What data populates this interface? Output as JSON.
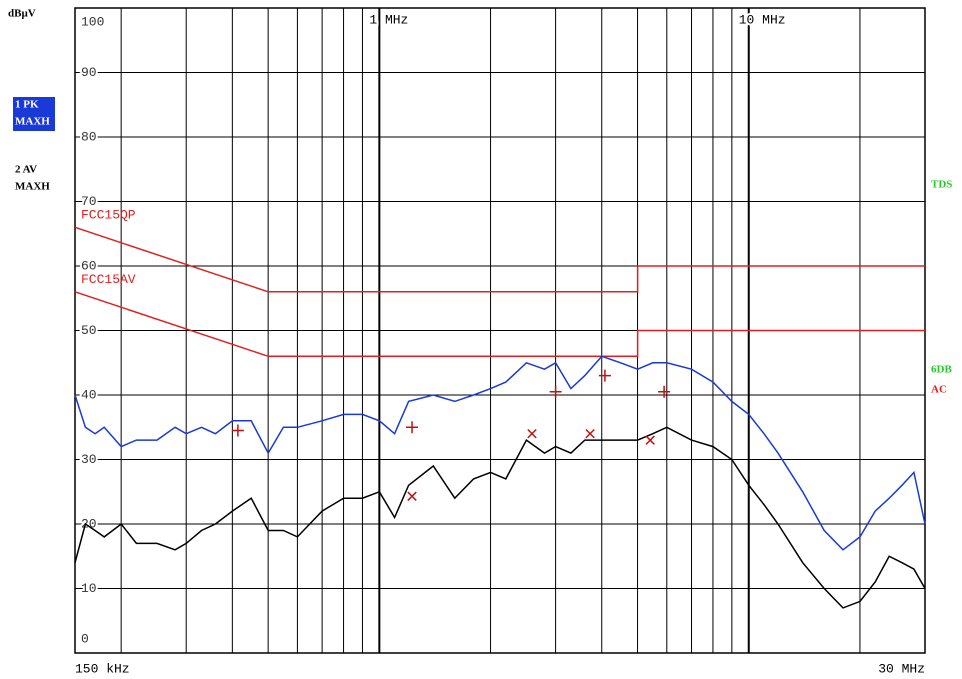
{
  "chart_data": {
    "type": "line",
    "y_unit": "dBµV",
    "xscale": "log",
    "grid": true,
    "xlim": [
      0.15,
      30
    ],
    "ylim": [
      0,
      100
    ],
    "xticks": [
      {
        "value": 0.15,
        "label": "150 kHz"
      },
      {
        "value": 1,
        "label": "1 MHz"
      },
      {
        "value": 10,
        "label": "10 MHz"
      },
      {
        "value": 30,
        "label": "30 MHz"
      }
    ],
    "xgrid": [
      0.2,
      0.3,
      0.4,
      0.5,
      0.6,
      0.7,
      0.8,
      0.9,
      2,
      3,
      4,
      5,
      6,
      7,
      8,
      9,
      20
    ],
    "yticks": [
      0,
      10,
      20,
      30,
      40,
      50,
      60,
      70,
      80,
      90,
      100
    ],
    "x": [
      0.15,
      0.16,
      0.17,
      0.18,
      0.2,
      0.22,
      0.25,
      0.28,
      0.3,
      0.33,
      0.36,
      0.4,
      0.45,
      0.5,
      0.55,
      0.6,
      0.7,
      0.8,
      0.9,
      1.0,
      1.1,
      1.2,
      1.4,
      1.6,
      1.8,
      2,
      2.2,
      2.5,
      2.8,
      3,
      3.3,
      3.6,
      4,
      4.5,
      5,
      5.5,
      6,
      7,
      8,
      9,
      10,
      11,
      12,
      14,
      16,
      18,
      20,
      22,
      24,
      26,
      28,
      30
    ],
    "series": [
      {
        "name": "1 PK",
        "mode": "MAXH",
        "color": "#1a3ad8",
        "legend_bg": "#1a3ad8",
        "values": [
          40,
          35,
          34,
          35,
          32,
          33,
          33,
          35,
          34,
          35,
          34,
          36,
          36,
          31,
          35,
          35,
          36,
          37,
          37,
          36,
          34,
          39,
          40,
          39,
          40,
          41,
          42,
          45,
          44,
          45,
          41,
          43,
          46,
          45,
          44,
          45,
          45,
          44,
          42,
          39,
          37,
          34,
          31,
          25,
          19,
          16,
          18,
          22,
          24,
          26,
          28,
          20
        ]
      },
      {
        "name": "2 AV",
        "mode": "MAXH",
        "color": "#000000",
        "values": [
          14,
          20,
          19,
          18,
          20,
          17,
          17,
          16,
          17,
          19,
          20,
          22,
          24,
          19,
          19,
          18,
          22,
          24,
          24,
          25,
          21,
          26,
          29,
          24,
          27,
          28,
          27,
          33,
          31,
          32,
          31,
          33,
          33,
          33,
          33,
          34,
          35,
          33,
          32,
          30,
          26,
          23,
          20,
          14,
          10,
          7,
          8,
          11,
          15,
          14,
          13,
          10
        ]
      }
    ],
    "limits": [
      {
        "name": "FCC15QP",
        "color": "#e02020",
        "x": [
          0.15,
          0.5,
          5,
          5,
          30
        ],
        "values": [
          66,
          56,
          56,
          60,
          60
        ]
      },
      {
        "name": "FCC15AV",
        "color": "#e02020",
        "x": [
          0.15,
          0.5,
          5,
          5,
          30
        ],
        "values": [
          56,
          46,
          46,
          50,
          50
        ]
      }
    ],
    "markers": [
      {
        "symbol": "plus",
        "color": "#c01010",
        "x": [
          0.414,
          1.226,
          3.0,
          4.08,
          5.9
        ],
        "values": [
          34.5,
          35,
          40.5,
          43,
          40.5
        ]
      },
      {
        "symbol": "cross",
        "color": "#c01010",
        "x": [
          1.226,
          2.59,
          3.72,
          5.41
        ],
        "values": [
          24.3,
          34,
          34,
          33
        ]
      }
    ],
    "status_labels": [
      {
        "text": "TDS",
        "color": "#22cc22"
      },
      {
        "text": "6DB",
        "color": "#22cc22"
      },
      {
        "text": "AC",
        "color": "#e02020"
      }
    ]
  }
}
